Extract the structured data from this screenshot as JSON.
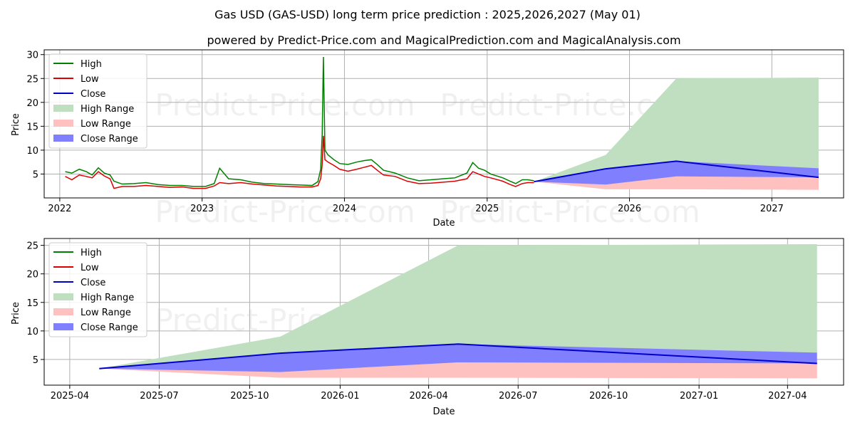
{
  "title": "Gas USD (GAS-USD) long term price prediction : 2025,2026,2027 (May 01)",
  "subtitle": "powered by Predict-Price.com and MagicalPrediction.com and MagicalAnalysis.com",
  "watermark": "Predict-Price.com",
  "colors": {
    "high": "#008000",
    "low": "#dd0000",
    "close": "#0000cc",
    "high_range": "#c0dfc0",
    "low_range": "#ffc0c0",
    "close_range": "#8080ff"
  },
  "legend": [
    "High",
    "Low",
    "Close",
    "High Range",
    "Low Range",
    "Close Range"
  ],
  "chart_data": [
    {
      "type": "line",
      "xlabel": "Date",
      "ylabel": "Price",
      "x_ticks": [
        "2022",
        "2023",
        "2024",
        "2025",
        "2026",
        "2027"
      ],
      "y_ticks": [
        5,
        10,
        15,
        20,
        25,
        30
      ],
      "xlim": [
        "2021-11-22",
        "2027-07-04"
      ],
      "ylim": [
        0,
        31
      ],
      "grid": true,
      "legend_position": "top-left",
      "history": {
        "dates": [
          "2022-01-15",
          "2022-02-01",
          "2022-02-20",
          "2022-03-10",
          "2022-03-25",
          "2022-04-10",
          "2022-04-25",
          "2022-05-10",
          "2022-05-20",
          "2022-06-10",
          "2022-07-10",
          "2022-08-10",
          "2022-09-10",
          "2022-10-10",
          "2022-11-10",
          "2022-12-10",
          "2023-01-10",
          "2023-02-01",
          "2023-02-15",
          "2023-03-10",
          "2023-04-10",
          "2023-05-10",
          "2023-06-10",
          "2023-07-10",
          "2023-08-10",
          "2023-09-10",
          "2023-10-10",
          "2023-10-25",
          "2023-11-01",
          "2023-11-05",
          "2023-11-08",
          "2023-11-12",
          "2023-11-20",
          "2023-12-05",
          "2023-12-20",
          "2024-01-10",
          "2024-02-01",
          "2024-02-20",
          "2024-03-10",
          "2024-03-25",
          "2024-04-10",
          "2024-05-10",
          "2024-06-10",
          "2024-07-10",
          "2024-08-10",
          "2024-09-10",
          "2024-10-10",
          "2024-11-10",
          "2024-11-25",
          "2024-12-10",
          "2024-12-25",
          "2025-01-10",
          "2025-02-10",
          "2025-03-01",
          "2025-03-15",
          "2025-04-01",
          "2025-04-15",
          "2025-05-01"
        ],
        "high": [
          5.5,
          5.2,
          6.0,
          5.5,
          4.8,
          6.3,
          5.2,
          4.8,
          3.5,
          2.9,
          3.0,
          3.2,
          2.8,
          2.6,
          2.6,
          2.4,
          2.4,
          3.0,
          6.2,
          4.0,
          3.8,
          3.3,
          3.0,
          2.9,
          2.8,
          2.7,
          2.6,
          3.4,
          6.0,
          13.5,
          29.5,
          10.0,
          9.0,
          8.0,
          7.2,
          7.0,
          7.5,
          7.8,
          8.0,
          7.0,
          5.8,
          5.2,
          4.2,
          3.6,
          3.8,
          4.0,
          4.2,
          5.2,
          7.4,
          6.2,
          5.8,
          5.0,
          4.2,
          3.5,
          3.0,
          3.8,
          3.8,
          3.6
        ],
        "low": [
          4.5,
          3.8,
          4.8,
          4.5,
          4.2,
          5.5,
          4.6,
          4.0,
          2.0,
          2.4,
          2.4,
          2.6,
          2.4,
          2.2,
          2.3,
          2.0,
          2.0,
          2.5,
          3.2,
          3.0,
          3.2,
          2.9,
          2.7,
          2.5,
          2.4,
          2.3,
          2.3,
          2.6,
          4.0,
          7.0,
          13.0,
          8.0,
          7.5,
          6.8,
          6.0,
          5.6,
          6.0,
          6.4,
          6.8,
          5.8,
          4.8,
          4.5,
          3.5,
          3.0,
          3.1,
          3.3,
          3.5,
          4.0,
          5.5,
          5.0,
          4.5,
          4.2,
          3.5,
          2.8,
          2.4,
          3.0,
          3.2,
          3.2
        ]
      },
      "forecast": {
        "dates": [
          "2025-05-01",
          "2025-11-01",
          "2026-05-01",
          "2027-05-01"
        ],
        "close": [
          3.4,
          6.1,
          7.7,
          4.3
        ],
        "high_range": [
          [
            3.4,
            3.4
          ],
          [
            2.8,
            9.0
          ],
          [
            4.5,
            25.0
          ],
          [
            6.2,
            25.2
          ]
        ],
        "low_range": [
          [
            3.4,
            3.4
          ],
          [
            1.8,
            2.8
          ],
          [
            1.8,
            4.5
          ],
          [
            1.7,
            4.3
          ]
        ],
        "close_range": [
          [
            3.4,
            3.4
          ],
          [
            2.8,
            6.1
          ],
          [
            4.5,
            7.7
          ],
          [
            4.3,
            6.2
          ]
        ]
      }
    },
    {
      "type": "area",
      "xlabel": "Date",
      "ylabel": "Price",
      "x_ticks": [
        "2025-04",
        "2025-07",
        "2025-10",
        "2026-01",
        "2026-04",
        "2026-07",
        "2026-10",
        "2027-01",
        "2027-04"
      ],
      "y_ticks": [
        5,
        10,
        15,
        20,
        25
      ],
      "xlim": [
        "2025-03-06",
        "2027-05-28"
      ],
      "ylim": [
        0.5,
        26.2
      ],
      "grid": true,
      "legend_position": "top-left",
      "forecast": {
        "dates": [
          "2025-05-01",
          "2025-11-01",
          "2026-05-01",
          "2027-05-01"
        ],
        "close": [
          3.4,
          6.1,
          7.7,
          4.3
        ],
        "high_range": [
          [
            3.4,
            3.4
          ],
          [
            2.8,
            9.0
          ],
          [
            4.5,
            25.0
          ],
          [
            6.2,
            25.2
          ]
        ],
        "low_range": [
          [
            3.4,
            3.4
          ],
          [
            1.8,
            2.8
          ],
          [
            1.8,
            4.5
          ],
          [
            1.7,
            4.3
          ]
        ],
        "close_range": [
          [
            3.4,
            3.4
          ],
          [
            2.8,
            6.1
          ],
          [
            4.5,
            7.7
          ],
          [
            4.3,
            6.2
          ]
        ]
      }
    }
  ]
}
